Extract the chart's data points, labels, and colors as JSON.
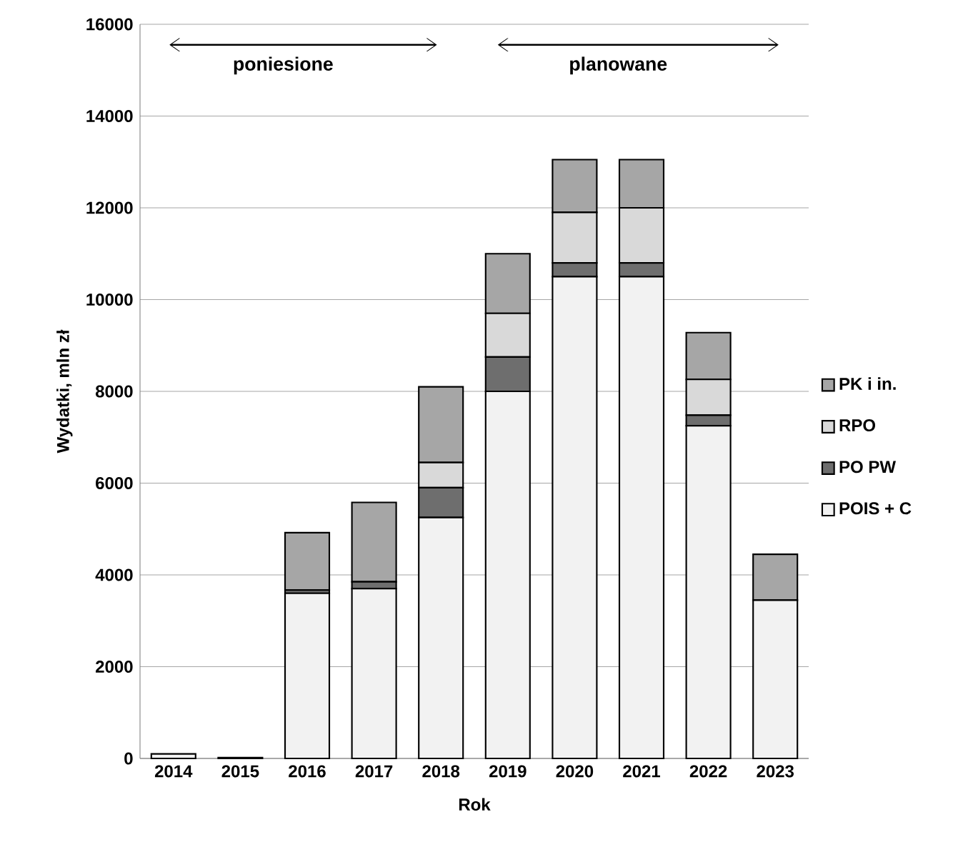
{
  "chart_data": {
    "type": "bar",
    "stacked": true,
    "xlabel": "Rok",
    "ylabel": "Wydatki, mln zł",
    "categories": [
      "2014",
      "2015",
      "2016",
      "2017",
      "2018",
      "2019",
      "2020",
      "2021",
      "2022",
      "2023"
    ],
    "series": [
      {
        "name": "POIS + C",
        "color": "#f2f2f2",
        "values": [
          100,
          20,
          3600,
          3700,
          5250,
          8000,
          10500,
          10500,
          7250,
          3450
        ]
      },
      {
        "name": "PO PW",
        "color": "#6e6e6e",
        "values": [
          0,
          0,
          70,
          150,
          650,
          750,
          300,
          300,
          230,
          0
        ]
      },
      {
        "name": "RPO",
        "color": "#d9d9d9",
        "values": [
          0,
          0,
          0,
          0,
          550,
          950,
          1100,
          1200,
          780,
          0
        ]
      },
      {
        "name": "PK i in.",
        "color": "#a6a6a6",
        "values": [
          0,
          0,
          1250,
          1730,
          1650,
          1300,
          1150,
          1050,
          1020,
          1000
        ]
      }
    ],
    "ylim": [
      0,
      16000
    ],
    "yticks": [
      0,
      2000,
      4000,
      6000,
      8000,
      10000,
      12000,
      14000,
      16000
    ],
    "grid": "y",
    "legend": "right",
    "annotations": [
      "poniesione",
      "planowane"
    ]
  }
}
